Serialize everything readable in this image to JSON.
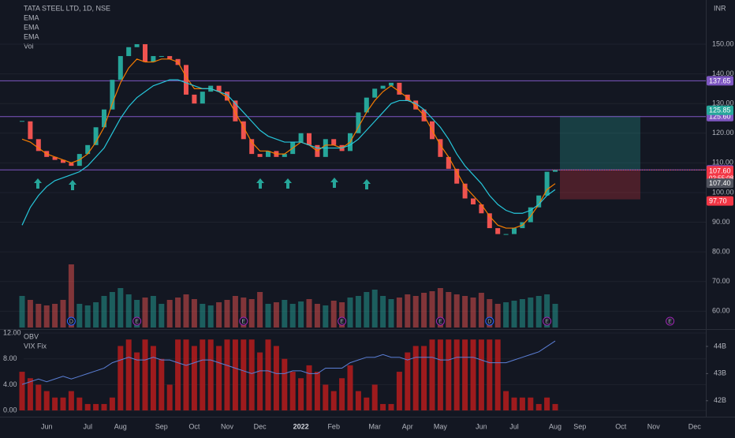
{
  "chart_data": [
    {
      "type": "candlestick",
      "title": "TATA STEEL LTD, 1D, NSE",
      "currency": "INR",
      "categories": [
        null,
        null,
        null,
        "Jun",
        null,
        null,
        null,
        null,
        "Jul",
        null,
        null,
        null,
        "Aug",
        null,
        null,
        null,
        null,
        "Sep",
        null,
        null,
        null,
        "Oct",
        null,
        null,
        null,
        "Nov",
        null,
        null,
        null,
        "Dec",
        null,
        null,
        null,
        null,
        "2022",
        null,
        null,
        null,
        "Feb",
        null,
        null,
        null,
        null,
        "Mar",
        null,
        null,
        null,
        "Apr",
        null,
        null,
        null,
        "May",
        null,
        null,
        null,
        null,
        "Jun",
        null,
        null,
        null,
        "Jul",
        null,
        null,
        null,
        null,
        "Aug",
        null,
        null,
        "Sep",
        null,
        null,
        null,
        null,
        "Oct",
        null,
        null,
        null,
        "Nov",
        null,
        null,
        null,
        null,
        "Dec"
      ],
      "close": [
        124,
        118,
        114,
        112,
        111,
        110,
        109,
        113,
        116,
        122,
        128,
        138,
        146,
        149,
        150,
        144,
        146,
        146,
        145,
        143,
        133,
        130,
        134,
        136,
        134,
        131,
        124,
        118,
        113,
        112,
        114,
        112,
        113,
        117,
        120,
        116,
        112,
        118,
        116,
        114,
        120,
        127,
        132,
        135,
        136,
        137,
        133,
        131,
        128,
        124,
        118,
        112,
        108,
        103,
        98,
        96,
        93,
        88,
        86,
        86,
        88,
        90,
        95,
        99,
        107,
        107.6,
        null,
        null,
        null,
        null,
        null,
        null,
        null,
        null,
        null,
        null,
        null,
        null,
        null,
        null,
        null,
        null,
        null
      ],
      "up_color": "#26a69a",
      "down_color": "#ef5350",
      "legend": [
        "EMA",
        "EMA",
        "EMA",
        "Vol"
      ],
      "series": [
        {
          "color": "#f57c00",
          "values": [
            118,
            117,
            115,
            113,
            112,
            111,
            110,
            111,
            113,
            117,
            122,
            130,
            137,
            142,
            145,
            144,
            144,
            145,
            145,
            144,
            139,
            135,
            135,
            135,
            134,
            132,
            127,
            122,
            117,
            114,
            114,
            113,
            113,
            115,
            117,
            116,
            114,
            116,
            116,
            115,
            117,
            122,
            127,
            131,
            134,
            136,
            134,
            132,
            129,
            126,
            121,
            116,
            112,
            107,
            102,
            99,
            96,
            92,
            89,
            88,
            88,
            89,
            92,
            96,
            101,
            103,
            null,
            null,
            null,
            null,
            null,
            null,
            null,
            null,
            null,
            null,
            null,
            null,
            null,
            null,
            null,
            null,
            null
          ]
        },
        {
          "color": "#26c6da",
          "values": [
            89,
            95,
            99,
            102,
            104,
            105,
            106,
            107,
            109,
            112,
            115,
            120,
            125,
            129,
            132,
            134,
            136,
            137,
            138,
            138,
            137,
            136,
            135,
            135,
            134,
            133,
            130,
            127,
            124,
            121,
            119,
            118,
            117,
            117,
            117,
            116,
            115,
            115,
            115,
            115,
            116,
            118,
            121,
            124,
            127,
            130,
            131,
            131,
            130,
            128,
            125,
            122,
            118,
            113,
            109,
            106,
            103,
            99,
            96,
            94,
            93,
            93,
            94,
            96,
            99,
            101,
            null,
            null,
            null,
            null,
            null,
            null,
            null,
            null,
            null,
            null,
            null,
            null,
            null,
            null,
            null,
            null,
            null
          ]
        }
      ],
      "volume": [
        40,
        35,
        30,
        28,
        30,
        35,
        80,
        30,
        28,
        32,
        40,
        45,
        50,
        42,
        35,
        38,
        40,
        30,
        35,
        38,
        42,
        36,
        30,
        28,
        32,
        35,
        40,
        38,
        36,
        45,
        30,
        32,
        35,
        30,
        33,
        36,
        30,
        28,
        34,
        32,
        38,
        40,
        45,
        48,
        40,
        36,
        38,
        42,
        40,
        44,
        46,
        50,
        45,
        42,
        40,
        38,
        44,
        36,
        30,
        32,
        34,
        36,
        38,
        40,
        42,
        30,
        null,
        null,
        null,
        null,
        null,
        null,
        null,
        null,
        null,
        null,
        null,
        null,
        null,
        null,
        null,
        null,
        null
      ],
      "ylim": [
        54.5,
        164.9
      ],
      "yticks": [
        {
          "value": 60,
          "label": "60.00"
        },
        {
          "value": 70,
          "label": "70.00"
        },
        {
          "value": 80,
          "label": "80.00"
        },
        {
          "value": 90,
          "label": "90.00"
        },
        {
          "value": 100,
          "label": "100.00"
        },
        {
          "value": 110,
          "label": "110.00"
        },
        {
          "value": 120,
          "label": "120.00"
        },
        {
          "value": 130,
          "label": "130.00"
        },
        {
          "value": 140,
          "label": "140.00"
        },
        {
          "value": 150,
          "label": "150.00"
        }
      ],
      "levels": [
        137.65,
        {
          "value": 125.6,
          "label": "125.60"
        },
        107.65
      ],
      "level_color": "#7e57c2",
      "position": {
        "target": 125.85,
        "entry": 107.65,
        "stop": {
          "value": 97.7,
          "label": "97.70"
        }
      },
      "last_price": {
        "value": 107.6,
        "label": "107.60",
        "countdown": "02:55:08"
      },
      "ema_price": {
        "value": 107.4,
        "label": "107.40"
      },
      "events": [
        {
          "label": "D",
          "at": 6
        },
        {
          "label": "E",
          "at": 14
        },
        {
          "label": "E",
          "at": 27
        },
        {
          "label": "E",
          "at": 39
        },
        {
          "label": "E",
          "at": 51
        },
        {
          "label": "D",
          "at": 57
        },
        {
          "label": "E",
          "at": 64
        },
        {
          "label": "E",
          "at": 79
        }
      ]
    },
    {
      "type": "indicator",
      "legend": [
        "OBV",
        "VIX Fix"
      ],
      "series": [
        {
          "color": "#b71c1c",
          "values": [
            6,
            5,
            4,
            3,
            2,
            2,
            3,
            2,
            1,
            1,
            1,
            2,
            10,
            11,
            9,
            11,
            10,
            8,
            4,
            11,
            11,
            10,
            11,
            11,
            10,
            11,
            11,
            11,
            11,
            9,
            11,
            10,
            8,
            6,
            5,
            7,
            6,
            4,
            3,
            5,
            7,
            3,
            2,
            4,
            1,
            1,
            6,
            9,
            10,
            10,
            11,
            11,
            11,
            11,
            11,
            11,
            11,
            11,
            11,
            3,
            2,
            2,
            2,
            1,
            2,
            1,
            null,
            null,
            null,
            null,
            null,
            null,
            null,
            null,
            null,
            null,
            null,
            null,
            null,
            null,
            null,
            null,
            null
          ]
        },
        {
          "color": "#5b7fd6",
          "axis": "y2",
          "values": [
            42.6,
            42.7,
            42.8,
            42.7,
            42.8,
            42.9,
            42.8,
            42.9,
            43.0,
            43.1,
            43.2,
            43.4,
            43.5,
            43.6,
            43.5,
            43.5,
            43.6,
            43.5,
            43.5,
            43.4,
            43.3,
            43.4,
            43.5,
            43.5,
            43.4,
            43.3,
            43.2,
            43.1,
            43.0,
            43.1,
            43.1,
            43.0,
            43.0,
            43.1,
            43.1,
            43.0,
            43.0,
            43.2,
            43.2,
            43.2,
            43.4,
            43.5,
            43.6,
            43.6,
            43.7,
            43.6,
            43.6,
            43.5,
            43.6,
            43.6,
            43.6,
            43.5,
            43.5,
            43.6,
            43.6,
            43.6,
            43.5,
            43.4,
            43.4,
            43.4,
            43.5,
            43.6,
            43.7,
            43.8,
            44.0,
            44.2,
            null,
            null,
            null,
            null,
            null,
            null,
            null,
            null,
            null,
            null,
            null,
            null,
            null,
            null,
            null,
            null,
            null
          ]
        }
      ],
      "ylim": [
        -0.6,
        12.25
      ],
      "yticks": [
        {
          "value": 0,
          "label": "0.00"
        },
        {
          "value": 4,
          "label": "4.00"
        },
        {
          "value": 8,
          "label": "8.00"
        },
        {
          "value": 12,
          "label": "12.00"
        }
      ],
      "y2lim": [
        41.5,
        44.55
      ],
      "y2ticks": [
        {
          "value": 42,
          "label": "42B"
        },
        {
          "value": 43,
          "label": "43B"
        },
        {
          "value": 44,
          "label": "44B"
        }
      ]
    }
  ]
}
